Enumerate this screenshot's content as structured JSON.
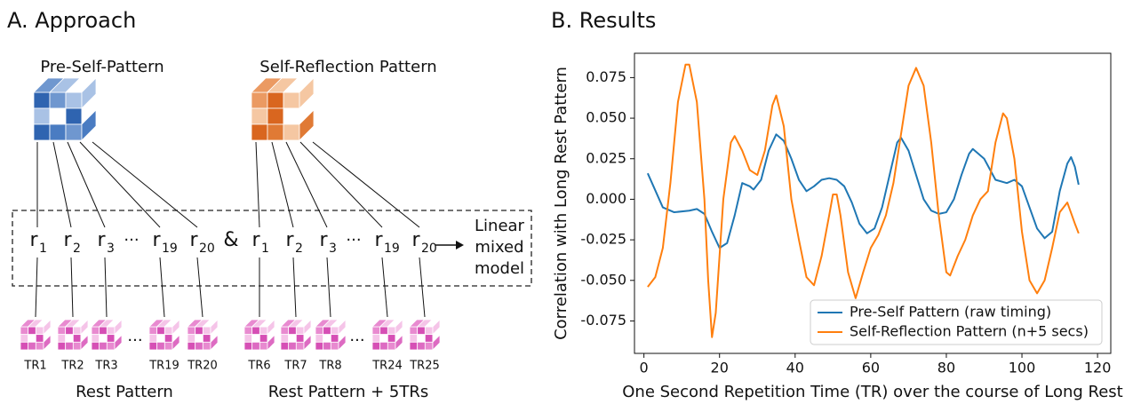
{
  "diagram": {
    "title": "A. Approach",
    "pattern_labels": [
      "Pre-Self-Pattern",
      "Self-Reflection Pattern"
    ],
    "r_base": "r",
    "r_subscripts": [
      "1",
      "2",
      "3",
      "19",
      "20"
    ],
    "ellipsis": "···",
    "ampersand": "&",
    "model_label": [
      "Linear",
      "mixed",
      "model"
    ],
    "tr_labels": [
      [
        "TR1",
        "TR2",
        "TR3",
        "TR19",
        "TR20"
      ],
      [
        "TR6",
        "TR7",
        "TR8",
        "TR24",
        "TR25"
      ]
    ],
    "group_labels": [
      "Rest Pattern",
      "Rest Pattern + 5TRs"
    ]
  },
  "chart_data": {
    "type": "line",
    "title": "B. Results",
    "xlabel": "One Second Repetition Time (TR) over the course of Long Rest",
    "ylabel": "Correlation with Long Rest Pattern",
    "xlim": [
      -2.5,
      123.5
    ],
    "xticks": [
      0,
      20,
      40,
      60,
      80,
      100,
      120
    ],
    "ylim": [
      -0.095,
      0.09
    ],
    "yticks": [
      -0.075,
      {
        "value": -0.05,
        "label": "-0.050"
      },
      -0.025,
      {
        "value": 0,
        "label": "0.000"
      },
      0.025,
      {
        "value": 0.05,
        "label": "0.050"
      },
      0.075
    ],
    "legend": "lower right",
    "series": [
      {
        "name": "Pre-Self Pattern (raw timing)",
        "color": "#1f77b4",
        "x": [
          1,
          5,
          8,
          12,
          14,
          16,
          18,
          20,
          22,
          24,
          26,
          28,
          29,
          31,
          33,
          35,
          37,
          39,
          41,
          43,
          45,
          47,
          49,
          51,
          53,
          55,
          57,
          59,
          61,
          63,
          65,
          67,
          68,
          70,
          72,
          74,
          76,
          78,
          80,
          82,
          84,
          86,
          87,
          90,
          93,
          96,
          98,
          100,
          102,
          104,
          106,
          108,
          110,
          112,
          113,
          114,
          115
        ],
        "values": [
          0.016,
          -0.005,
          -0.008,
          -0.007,
          -0.006,
          -0.009,
          -0.02,
          -0.03,
          -0.027,
          -0.01,
          0.01,
          0.008,
          0.006,
          0.012,
          0.03,
          0.04,
          0.036,
          0.025,
          0.012,
          0.005,
          0.008,
          0.012,
          0.013,
          0.012,
          0.008,
          -0.002,
          -0.015,
          -0.021,
          -0.018,
          -0.005,
          0.015,
          0.035,
          0.038,
          0.03,
          0.015,
          0,
          -0.007,
          -0.009,
          -0.008,
          0,
          0.015,
          0.028,
          0.031,
          0.025,
          0.012,
          0.01,
          0.012,
          0.008,
          -0.005,
          -0.018,
          -0.024,
          -0.02,
          0.005,
          0.022,
          0.026,
          0.02,
          0.009
        ]
      },
      {
        "name": "Self-Reflection Pattern (n+5 secs)",
        "color": "#ff7f0e",
        "x": [
          1,
          3,
          5,
          7,
          9,
          11,
          12,
          14,
          16,
          17,
          18,
          19,
          21,
          23,
          24,
          26,
          28,
          30,
          32,
          34,
          35,
          37,
          39,
          41,
          43,
          45,
          47,
          49,
          50,
          51,
          52,
          54,
          56,
          58,
          60,
          62,
          64,
          66,
          68,
          70,
          72,
          74,
          76,
          78,
          80,
          81,
          83,
          85,
          87,
          89,
          91,
          93,
          95,
          96,
          98,
          100,
          102,
          104,
          106,
          108,
          110,
          112,
          114,
          115
        ],
        "values": [
          -0.054,
          -0.048,
          -0.03,
          0.01,
          0.06,
          0.083,
          0.083,
          0.06,
          0,
          -0.05,
          -0.085,
          -0.07,
          0,
          0.035,
          0.039,
          0.03,
          0.018,
          0.015,
          0.03,
          0.058,
          0.064,
          0.045,
          0,
          -0.025,
          -0.048,
          -0.053,
          -0.035,
          -0.01,
          0.003,
          0.003,
          -0.01,
          -0.045,
          -0.061,
          -0.045,
          -0.03,
          -0.022,
          -0.01,
          0.01,
          0.04,
          0.07,
          0.081,
          0.07,
          0.035,
          -0.01,
          -0.045,
          -0.047,
          -0.035,
          -0.025,
          -0.01,
          0,
          0.005,
          0.035,
          0.053,
          0.05,
          0.025,
          -0.02,
          -0.05,
          -0.058,
          -0.05,
          -0.03,
          -0.008,
          -0.002,
          -0.015,
          -0.021
        ]
      }
    ]
  }
}
